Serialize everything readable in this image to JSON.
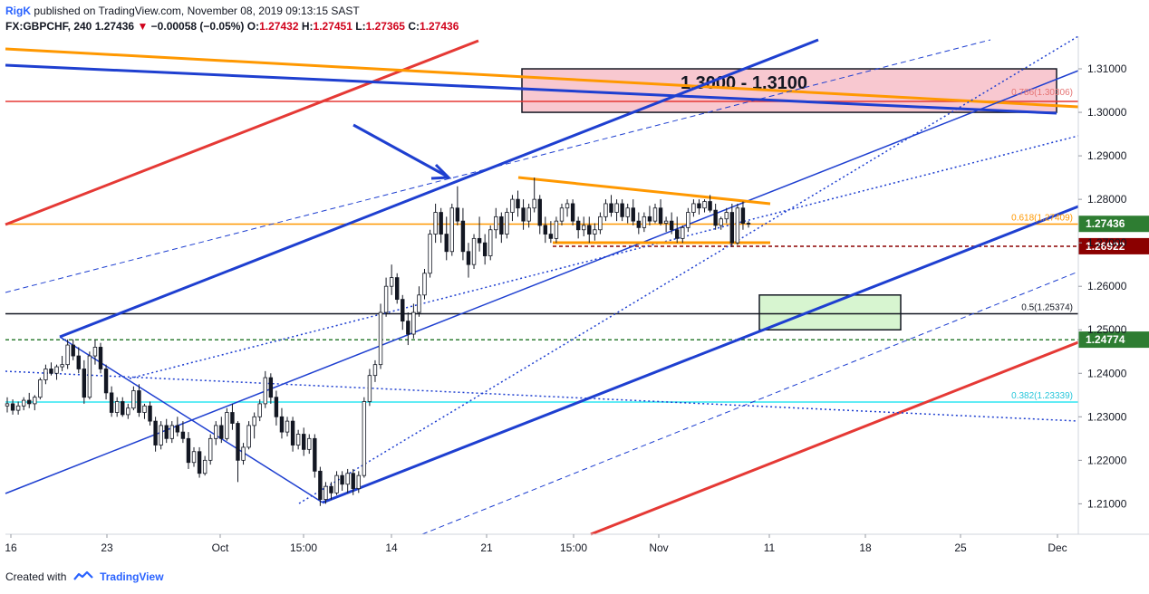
{
  "header": {
    "author": "RigK",
    "published": "published on TradingView.com, November 08, 2019 09:13:15 SAST",
    "symbol": "FX:GBPCHF, 240",
    "last": "1.27436",
    "change_arrow": "▼",
    "change": "−0.00058 (−0.05%)",
    "o_label": "O:",
    "o_value": "1.27432",
    "h_label": "H:",
    "h_value": "1.27451",
    "l_label": "L:",
    "l_value": "1.27365",
    "c_label": "C:",
    "c_value": "1.27436"
  },
  "footer": {
    "created_with": "Created with",
    "brand": "TradingView",
    "icon": "tradingview-logo-icon"
  },
  "chart_data": {
    "type": "candlestick",
    "symbol": "GBPCHF",
    "timeframe": "240",
    "ylim": [
      1.203,
      1.3175
    ],
    "y_ticks": [
      "1.31000",
      "1.30000",
      "1.29000",
      "1.28000",
      "1.27000",
      "1.26000",
      "1.25000",
      "1.24000",
      "1.23000",
      "1.22000",
      "1.21000"
    ],
    "x_ticks": [
      "16",
      "23",
      "Oct",
      "15:00",
      "14",
      "21",
      "15:00",
      "Nov",
      "11",
      "18",
      "25",
      "Dec"
    ],
    "price_badges": [
      {
        "text": "1.27436",
        "value": 1.27436,
        "color": "#ff9800"
      },
      {
        "text": "02:46:47",
        "value": 1.2695,
        "color": "#ffffff"
      },
      {
        "text": "1.26922",
        "value": 1.26922,
        "color": "#8b0000"
      },
      {
        "text": "1.24774",
        "value": 1.24774,
        "color": "#2e7d32"
      }
    ],
    "horizontal_levels": [
      {
        "value": 1.2743,
        "color": "#ff9800",
        "style": "solid"
      },
      {
        "value": 1.3025,
        "color": "#e53935",
        "style": "solid"
      },
      {
        "value": 1.2537,
        "color": "#131722",
        "style": "solid"
      },
      {
        "value": 1.2477,
        "color": "#2e7d32",
        "style": "dashed"
      },
      {
        "value": 1.2334,
        "color": "#2ee6f2",
        "style": "solid"
      },
      {
        "value": 1.2692,
        "color": "#8b0000",
        "style": "dashed"
      }
    ],
    "fib_labels": [
      {
        "text": "0.786(1.30306)",
        "value": 1.3031,
        "color": "#e57373"
      },
      {
        "text": "0.618(1.27409)",
        "value": 1.2743,
        "color": "#ff9800"
      },
      {
        "text": "0.5(1.25374)",
        "value": 1.2537,
        "color": "#131722"
      },
      {
        "text": "0.382(1.23339)",
        "value": 1.2334,
        "color": "#26c6da"
      }
    ],
    "zones": [
      {
        "label": "1.3000 - 1.3100",
        "y1": 1.31,
        "y2": 1.3,
        "fill": "#f8c8d0",
        "stroke": "#131722"
      },
      {
        "label": "",
        "y1": 1.258,
        "y2": 1.25,
        "fill": "#d7f5d0",
        "stroke": "#131722"
      }
    ],
    "candles": [
      [
        1.2325,
        1.2345,
        1.231,
        1.233
      ],
      [
        1.233,
        1.234,
        1.2305,
        1.2315
      ],
      [
        1.2315,
        1.2335,
        1.2305,
        1.2325
      ],
      [
        1.2325,
        1.2345,
        1.2315,
        1.2338
      ],
      [
        1.2338,
        1.2355,
        1.232,
        1.233
      ],
      [
        1.233,
        1.235,
        1.2315,
        1.2345
      ],
      [
        1.2345,
        1.239,
        1.234,
        1.2385
      ],
      [
        1.2385,
        1.242,
        1.2375,
        1.241
      ],
      [
        1.241,
        1.2425,
        1.2395,
        1.24
      ],
      [
        1.24,
        1.242,
        1.2385,
        1.2415
      ],
      [
        1.2415,
        1.244,
        1.2405,
        1.242
      ],
      [
        1.242,
        1.2478,
        1.241,
        1.2465
      ],
      [
        1.2465,
        1.2478,
        1.243,
        1.244
      ],
      [
        1.244,
        1.246,
        1.24,
        1.241
      ],
      [
        1.241,
        1.243,
        1.233,
        1.2345
      ],
      [
        1.2345,
        1.245,
        1.234,
        1.244
      ],
      [
        1.244,
        1.2478,
        1.242,
        1.246
      ],
      [
        1.246,
        1.247,
        1.24,
        1.241
      ],
      [
        1.241,
        1.242,
        1.234,
        1.2355
      ],
      [
        1.2355,
        1.237,
        1.23,
        1.231
      ],
      [
        1.231,
        1.2345,
        1.23,
        1.2335
      ],
      [
        1.2335,
        1.2345,
        1.23,
        1.2305
      ],
      [
        1.2305,
        1.233,
        1.2295,
        1.232
      ],
      [
        1.232,
        1.237,
        1.2315,
        1.236
      ],
      [
        1.236,
        1.2375,
        1.23,
        1.231
      ],
      [
        1.231,
        1.233,
        1.2295,
        1.2325
      ],
      [
        1.2325,
        1.2335,
        1.228,
        1.229
      ],
      [
        1.229,
        1.23,
        1.222,
        1.2235
      ],
      [
        1.2235,
        1.229,
        1.2225,
        1.228
      ],
      [
        1.228,
        1.2295,
        1.224,
        1.225
      ],
      [
        1.225,
        1.229,
        1.224,
        1.228
      ],
      [
        1.228,
        1.23,
        1.2255,
        1.2265
      ],
      [
        1.2265,
        1.229,
        1.224,
        1.225
      ],
      [
        1.225,
        1.2265,
        1.218,
        1.2195
      ],
      [
        1.2195,
        1.223,
        1.2185,
        1.222
      ],
      [
        1.222,
        1.223,
        1.216,
        1.217
      ],
      [
        1.217,
        1.221,
        1.2165,
        1.22
      ],
      [
        1.22,
        1.226,
        1.219,
        1.225
      ],
      [
        1.225,
        1.229,
        1.2235,
        1.228
      ],
      [
        1.228,
        1.23,
        1.224,
        1.225
      ],
      [
        1.225,
        1.232,
        1.2245,
        1.231
      ],
      [
        1.231,
        1.233,
        1.227,
        1.2285
      ],
      [
        1.2285,
        1.229,
        1.215,
        1.22
      ],
      [
        1.22,
        1.224,
        1.219,
        1.223
      ],
      [
        1.223,
        1.229,
        1.2225,
        1.228
      ],
      [
        1.228,
        1.231,
        1.225,
        1.23
      ],
      [
        1.23,
        1.234,
        1.229,
        1.233
      ],
      [
        1.233,
        1.2405,
        1.232,
        1.239
      ],
      [
        1.239,
        1.24,
        1.233,
        1.2345
      ],
      [
        1.2345,
        1.236,
        1.228,
        1.23
      ],
      [
        1.23,
        1.232,
        1.225,
        1.2265
      ],
      [
        1.2265,
        1.23,
        1.2255,
        1.229
      ],
      [
        1.229,
        1.23,
        1.222,
        1.2235
      ],
      [
        1.2235,
        1.227,
        1.2225,
        1.226
      ],
      [
        1.226,
        1.2275,
        1.221,
        1.2225
      ],
      [
        1.2225,
        1.226,
        1.2215,
        1.225
      ],
      [
        1.225,
        1.226,
        1.216,
        1.2175
      ],
      [
        1.2175,
        1.2185,
        1.2095,
        1.211
      ],
      [
        1.211,
        1.215,
        1.21,
        1.214
      ],
      [
        1.214,
        1.215,
        1.211,
        1.2125
      ],
      [
        1.2125,
        1.2175,
        1.212,
        1.2165
      ],
      [
        1.2165,
        1.2175,
        1.213,
        1.2145
      ],
      [
        1.2145,
        1.218,
        1.2125,
        1.217
      ],
      [
        1.217,
        1.218,
        1.212,
        1.2135
      ],
      [
        1.2135,
        1.2175,
        1.2125,
        1.2165
      ],
      [
        1.2165,
        1.2345,
        1.216,
        1.2335
      ],
      [
        1.2335,
        1.241,
        1.2325,
        1.2395
      ],
      [
        1.2395,
        1.243,
        1.238,
        1.242
      ],
      [
        1.242,
        1.256,
        1.241,
        1.254
      ],
      [
        1.254,
        1.262,
        1.253,
        1.26
      ],
      [
        1.26,
        1.265,
        1.258,
        1.262
      ],
      [
        1.262,
        1.263,
        1.256,
        1.257
      ],
      [
        1.257,
        1.258,
        1.25,
        1.252
      ],
      [
        1.252,
        1.254,
        1.2465,
        1.249
      ],
      [
        1.249,
        1.256,
        1.248,
        1.254
      ],
      [
        1.254,
        1.26,
        1.253,
        1.258
      ],
      [
        1.258,
        1.264,
        1.257,
        1.263
      ],
      [
        1.263,
        1.273,
        1.262,
        1.272
      ],
      [
        1.272,
        1.279,
        1.27,
        1.277
      ],
      [
        1.277,
        1.278,
        1.27,
        1.272
      ],
      [
        1.272,
        1.276,
        1.266,
        1.268
      ],
      [
        1.268,
        1.279,
        1.267,
        1.278
      ],
      [
        1.278,
        1.283,
        1.274,
        1.275
      ],
      [
        1.275,
        1.278,
        1.266,
        1.268
      ],
      [
        1.268,
        1.27,
        1.262,
        1.265
      ],
      [
        1.265,
        1.272,
        1.264,
        1.271
      ],
      [
        1.271,
        1.276,
        1.268,
        1.27
      ],
      [
        1.27,
        1.272,
        1.265,
        1.267
      ],
      [
        1.267,
        1.274,
        1.266,
        1.273
      ],
      [
        1.273,
        1.278,
        1.271,
        1.276
      ],
      [
        1.276,
        1.277,
        1.27,
        1.272
      ],
      [
        1.272,
        1.278,
        1.271,
        1.277
      ],
      [
        1.277,
        1.281,
        1.275,
        1.28
      ],
      [
        1.28,
        1.282,
        1.276,
        1.278
      ],
      [
        1.278,
        1.28,
        1.273,
        1.275
      ],
      [
        1.275,
        1.279,
        1.2735,
        1.278
      ],
      [
        1.278,
        1.285,
        1.277,
        1.28
      ],
      [
        1.28,
        1.281,
        1.272,
        1.274
      ],
      [
        1.274,
        1.276,
        1.27,
        1.272
      ],
      [
        1.272,
        1.275,
        1.27,
        1.271
      ],
      [
        1.271,
        1.276,
        1.27,
        1.275
      ],
      [
        1.275,
        1.279,
        1.274,
        1.278
      ],
      [
        1.278,
        1.28,
        1.276,
        1.279
      ],
      [
        1.279,
        1.28,
        1.274,
        1.275
      ],
      [
        1.275,
        1.276,
        1.271,
        1.273
      ],
      [
        1.273,
        1.276,
        1.2715,
        1.274
      ],
      [
        1.274,
        1.276,
        1.27,
        1.272
      ],
      [
        1.272,
        1.2745,
        1.2705,
        1.273
      ],
      [
        1.273,
        1.277,
        1.272,
        1.276
      ],
      [
        1.276,
        1.28,
        1.275,
        1.279
      ],
      [
        1.279,
        1.281,
        1.276,
        1.277
      ],
      [
        1.277,
        1.28,
        1.275,
        1.279
      ],
      [
        1.279,
        1.28,
        1.275,
        1.276
      ],
      [
        1.276,
        1.279,
        1.2745,
        1.278
      ],
      [
        1.278,
        1.28,
        1.274,
        1.275
      ],
      [
        1.275,
        1.277,
        1.272,
        1.2735
      ],
      [
        1.2735,
        1.277,
        1.2725,
        1.276
      ],
      [
        1.276,
        1.2785,
        1.274,
        1.275
      ],
      [
        1.275,
        1.279,
        1.2745,
        1.278
      ],
      [
        1.278,
        1.28,
        1.274,
        1.2745
      ],
      [
        1.2745,
        1.276,
        1.2725,
        1.275
      ],
      [
        1.275,
        1.277,
        1.272,
        1.273
      ],
      [
        1.273,
        1.276,
        1.27,
        1.271
      ],
      [
        1.271,
        1.274,
        1.27,
        1.2735
      ],
      [
        1.2735,
        1.278,
        1.2725,
        1.277
      ],
      [
        1.277,
        1.28,
        1.276,
        1.279
      ],
      [
        1.279,
        1.28,
        1.2765,
        1.278
      ],
      [
        1.278,
        1.28,
        1.277,
        1.2795
      ],
      [
        1.2795,
        1.281,
        1.277,
        1.2775
      ],
      [
        1.2775,
        1.279,
        1.273,
        1.274
      ],
      [
        1.274,
        1.276,
        1.273,
        1.2755
      ],
      [
        1.2755,
        1.278,
        1.2745,
        1.277
      ],
      [
        1.277,
        1.279,
        1.269,
        1.27
      ],
      [
        1.27,
        1.279,
        1.2695,
        1.278
      ],
      [
        1.278,
        1.2795,
        1.273,
        1.2745
      ],
      [
        1.2745,
        1.275,
        1.2735,
        1.2744
      ]
    ]
  }
}
